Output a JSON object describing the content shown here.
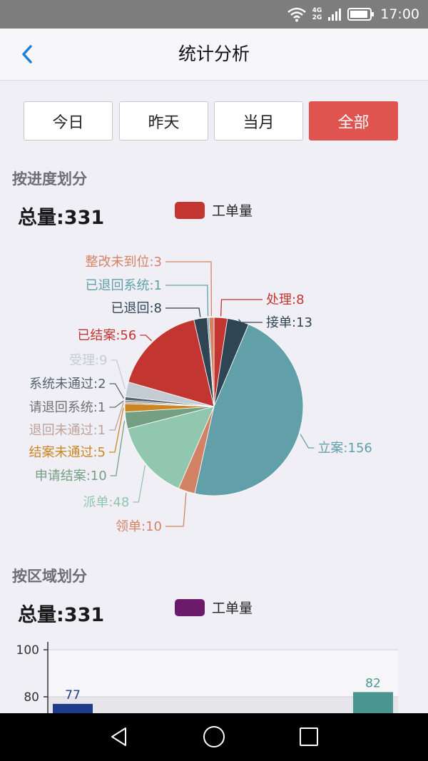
{
  "status_bar": {
    "time": "17:00",
    "network_top": "4G",
    "network_bottom": "2G"
  },
  "header": {
    "title": "统计分析"
  },
  "filters": [
    {
      "label": "今日",
      "active": false
    },
    {
      "label": "昨天",
      "active": false
    },
    {
      "label": "当月",
      "active": false
    },
    {
      "label": "全部",
      "active": true
    }
  ],
  "progress_section": {
    "title": "按进度划分",
    "total": "总量:331",
    "legend": "工单量",
    "legend_color": "#c23531"
  },
  "region_section": {
    "title": "按区域划分",
    "total": "总量:331",
    "legend": "工单量",
    "legend_color": "#6b1a6a"
  },
  "chart_data": [
    {
      "type": "pie",
      "slices": [
        {
          "label": "处理:8",
          "value": 8,
          "color": "#c23531"
        },
        {
          "label": "接单:13",
          "value": 13,
          "color": "#2f4554"
        },
        {
          "label": "立案:156",
          "value": 156,
          "color": "#61a0a8"
        },
        {
          "label": "领单:10",
          "value": 10,
          "color": "#d48265"
        },
        {
          "label": "派单:48",
          "value": 48,
          "color": "#91c7ae"
        },
        {
          "label": "申请结案:10",
          "value": 10,
          "color": "#749f83"
        },
        {
          "label": "结案未通过:5",
          "value": 5,
          "color": "#ca8622"
        },
        {
          "label": "退回未通过:1",
          "value": 1,
          "color": "#bda29a"
        },
        {
          "label": "请退回系统:1",
          "value": 1,
          "color": "#6e7074"
        },
        {
          "label": "系统未通过:2",
          "value": 2,
          "color": "#546570"
        },
        {
          "label": "受理:9",
          "value": 9,
          "color": "#c4ccd3"
        },
        {
          "label": "已结案:56",
          "value": 56,
          "color": "#c23531"
        },
        {
          "label": "已退回:8",
          "value": 8,
          "color": "#2f4554"
        },
        {
          "label": "已退回系统:1",
          "value": 1,
          "color": "#61a0a8"
        },
        {
          "label": "整改未到位:3",
          "value": 3,
          "color": "#d48265"
        }
      ]
    },
    {
      "type": "bar",
      "ylim": [
        0,
        100
      ],
      "yticks": [
        "100",
        "80"
      ],
      "values": [
        77,
        82
      ],
      "value_labels": [
        "77",
        "82"
      ],
      "colors": [
        "#1f3a8a",
        "#4a9590"
      ]
    }
  ]
}
